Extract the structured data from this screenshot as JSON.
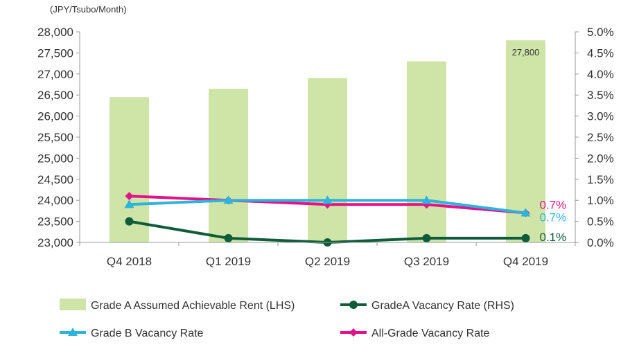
{
  "chart_data": {
    "type": "bar",
    "unit_label": "(JPY/Tsubo/Month)",
    "categories": [
      "Q4 2018",
      "Q1 2019",
      "Q2 2019",
      "Q3 2019",
      "Q4 2019"
    ],
    "left_axis": {
      "min": 23000,
      "max": 28000,
      "step": 500,
      "tick_labels": [
        "23,000",
        "23,500",
        "24,000",
        "24,500",
        "25,000",
        "25,500",
        "26,000",
        "26,500",
        "27,000",
        "27,500",
        "28,000"
      ]
    },
    "right_axis": {
      "min": 0.0,
      "max": 5.0,
      "step": 0.5,
      "tick_labels": [
        "0.0%",
        "0.5%",
        "1.0%",
        "1.5%",
        "2.0%",
        "2.5%",
        "3.0%",
        "3.5%",
        "4.0%",
        "4.5%",
        "5.0%"
      ]
    },
    "bars": {
      "name": "Grade A Assumed Achievable Rent (LHS)",
      "values": [
        26450,
        26650,
        26900,
        27300,
        27800
      ],
      "color": "#cfe5a8",
      "data_labels": [
        null,
        null,
        null,
        null,
        "27,800"
      ]
    },
    "series": [
      {
        "name": "GradeA Vacancy Rate (RHS)",
        "values": [
          0.5,
          0.1,
          0.0,
          0.1,
          0.1
        ],
        "color": "#0f5c3a",
        "marker": "circle",
        "end_label": "0.1%"
      },
      {
        "name": "Grade B Vacancy Rate",
        "values": [
          0.9,
          1.0,
          1.0,
          1.0,
          0.7
        ],
        "color": "#2db4dc",
        "marker": "triangle",
        "end_label": "0.7%"
      },
      {
        "name": "All-Grade Vacancy Rate",
        "values": [
          1.1,
          1.0,
          0.9,
          0.9,
          0.7
        ],
        "color": "#e3118a",
        "marker": "diamond",
        "end_label": "0.7%"
      }
    ],
    "legend_position": "bottom",
    "grid": false
  }
}
